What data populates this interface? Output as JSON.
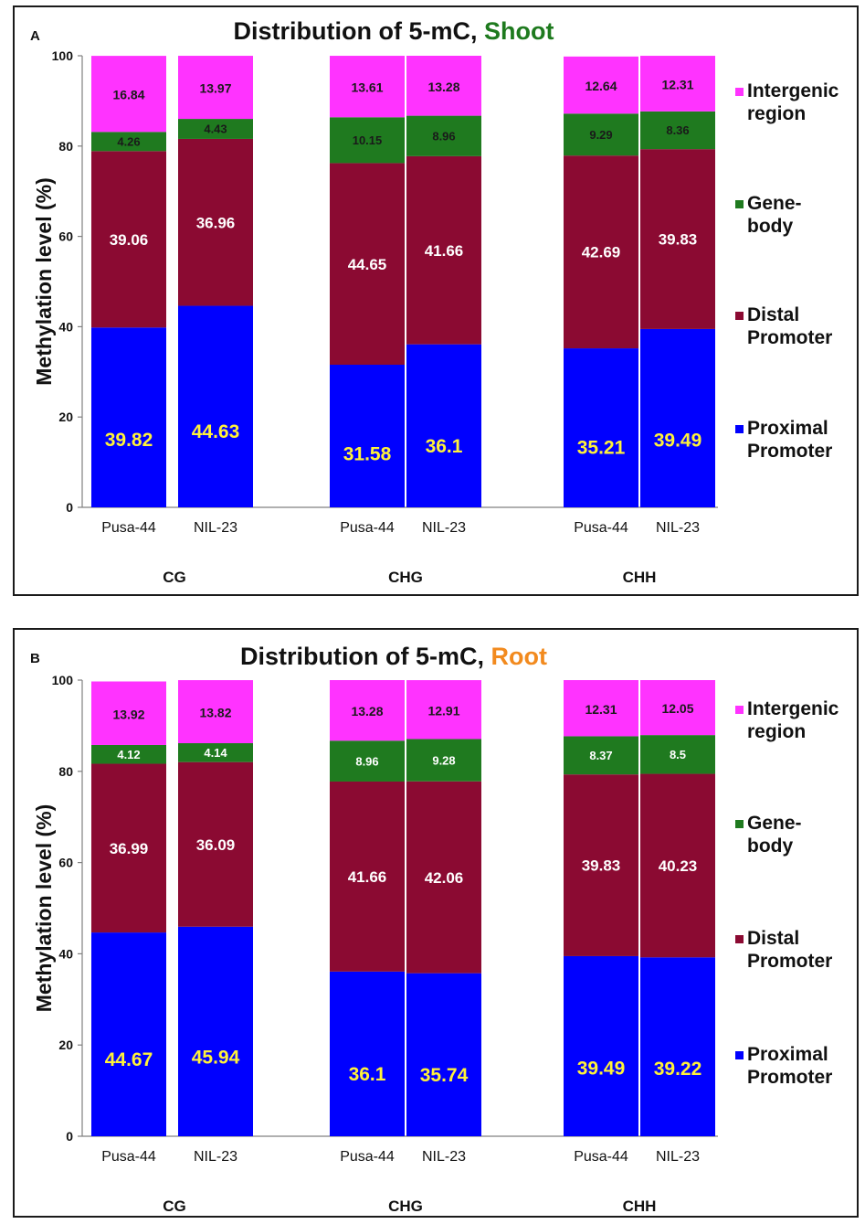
{
  "colors": {
    "proximal": "#0000FF",
    "distal": "#8B0A32",
    "genebody": "#1F7A1F",
    "intergenic": "#FF33FF",
    "title_shoot": "#1E7A1E",
    "title_root": "#F28A1E",
    "label_yellow": "#FFF23A",
    "label_white": "#FFFFFF",
    "label_black": "#1A1A1A"
  },
  "chart_data": [
    {
      "panel": "A",
      "type": "bar",
      "stacked": true,
      "title": "Distribution of 5-mC, ",
      "title_highlight": "Shoot",
      "ylabel": "Methylation  level  (%)",
      "xlabel": "",
      "ylim": [
        0,
        100
      ],
      "yticks": [
        "0",
        "20",
        "40",
        "60",
        "80",
        "100"
      ],
      "categories": [
        "Pusa-44",
        "NIL-23",
        "Pusa-44",
        "NIL-23",
        "Pusa-44",
        "NIL-23"
      ],
      "groups": [
        "CG",
        "CHG",
        "CHH"
      ],
      "legend": [
        {
          "key": "intergenic",
          "line1": "Intergenic",
          "line2": "region"
        },
        {
          "key": "genebody",
          "line1": "Gene-",
          "line2": "body"
        },
        {
          "key": "distal",
          "line1": "Distal",
          "line2": "Promoter"
        },
        {
          "key": "proximal",
          "line1": "Proximal",
          "line2": "Promoter"
        }
      ],
      "series": [
        {
          "name": "Proximal Promoter",
          "key": "proximal",
          "values": [
            39.82,
            44.63,
            31.58,
            36.1,
            35.21,
            39.49
          ],
          "labels": [
            "39.82",
            "44.63",
            "31.58",
            "36.1",
            "35.21",
            "39.49"
          ]
        },
        {
          "name": "Distal Promoter",
          "key": "distal",
          "values": [
            39.06,
            36.96,
            44.65,
            41.66,
            42.69,
            39.83
          ],
          "labels": [
            "39.06",
            "36.96",
            "44.65",
            "41.66",
            "42.69",
            "39.83"
          ]
        },
        {
          "name": "Gene-body",
          "key": "genebody",
          "values": [
            4.26,
            4.43,
            10.15,
            8.96,
            9.29,
            8.36
          ],
          "labels": [
            "4.26",
            "4.43",
            "10.15",
            "8.96",
            "9.29",
            "8.36"
          ]
        },
        {
          "name": "Intergenic region",
          "key": "intergenic",
          "values": [
            16.84,
            13.97,
            13.61,
            13.28,
            12.64,
            12.31
          ],
          "labels": [
            "16.84",
            "13.97",
            "13.61",
            "13.28",
            "12.64",
            "12.31"
          ]
        }
      ]
    },
    {
      "panel": "B",
      "type": "bar",
      "stacked": true,
      "title": "Distribution of 5-mC, ",
      "title_highlight": "Root",
      "ylabel": "Methylation  level  (%)",
      "xlabel": "",
      "ylim": [
        0,
        100
      ],
      "yticks": [
        "0",
        "20",
        "40",
        "60",
        "80",
        "100"
      ],
      "categories": [
        "Pusa-44",
        "NIL-23",
        "Pusa-44",
        "NIL-23",
        "Pusa-44",
        "NIL-23"
      ],
      "groups": [
        "CG",
        "CHG",
        "CHH"
      ],
      "legend": [
        {
          "key": "intergenic",
          "line1": "Intergenic",
          "line2": "region"
        },
        {
          "key": "genebody",
          "line1": "Gene-",
          "line2": "body"
        },
        {
          "key": "distal",
          "line1": "Distal",
          "line2": "Promoter"
        },
        {
          "key": "proximal",
          "line1": "Proximal",
          "line2": "Promoter"
        }
      ],
      "series": [
        {
          "name": "Proximal Promoter",
          "key": "proximal",
          "values": [
            44.67,
            45.94,
            36.1,
            35.74,
            39.49,
            39.22
          ],
          "labels": [
            "44.67",
            "45.94",
            "36.1",
            "35.74",
            "39.49",
            "39.22"
          ]
        },
        {
          "name": "Distal Promoter",
          "key": "distal",
          "values": [
            36.99,
            36.09,
            41.66,
            42.06,
            39.83,
            40.23
          ],
          "labels": [
            "36.99",
            "36.09",
            "41.66",
            "42.06",
            "39.83",
            "40.23"
          ]
        },
        {
          "name": "Gene-body",
          "key": "genebody",
          "values": [
            4.12,
            4.14,
            8.96,
            9.28,
            8.37,
            8.5
          ],
          "labels": [
            "4.12",
            "4.14",
            "8.96",
            "9.28",
            "8.37",
            "8.5"
          ]
        },
        {
          "name": "Intergenic region",
          "key": "intergenic",
          "values": [
            13.92,
            13.82,
            13.28,
            12.91,
            12.31,
            12.05
          ],
          "labels": [
            "13.92",
            "13.82",
            "13.28",
            "12.91",
            "12.31",
            "12.05"
          ]
        }
      ]
    }
  ]
}
